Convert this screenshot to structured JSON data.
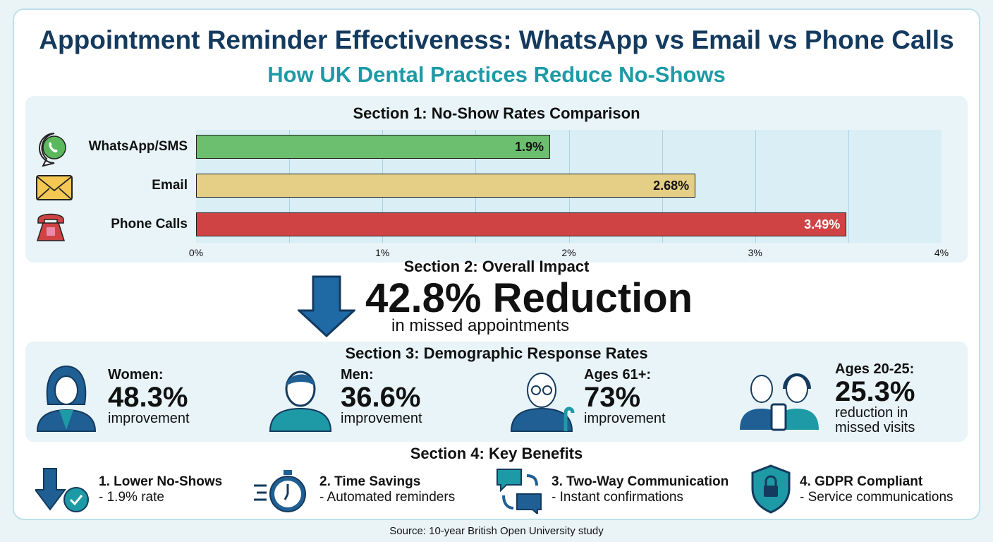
{
  "title": "Appointment Reminder Effectiveness: WhatsApp vs Email vs Phone Calls",
  "subtitle": "How UK Dental Practices Reduce No-Shows",
  "chart_data": {
    "type": "bar",
    "orientation": "horizontal",
    "title": "Section 1: No-Show Rates Comparison",
    "categories": [
      "WhatsApp/SMS",
      "Email",
      "Phone Calls"
    ],
    "values": [
      1.9,
      2.68,
      3.49
    ],
    "data_labels": [
      "1.9%",
      "2.68%",
      "3.49%"
    ],
    "colors": [
      "#6cbf6e",
      "#e5cf86",
      "#d04345"
    ],
    "icons": [
      "whatsapp-icon",
      "envelope-icon",
      "telephone-icon"
    ],
    "xlim": [
      0,
      4
    ],
    "ticks": [
      "0%",
      "1%",
      "2%",
      "3%",
      "4%"
    ],
    "grid": true
  },
  "impact": {
    "title": "Section 2: Overall Impact",
    "headline": "42.8% Reduction",
    "sub": "in missed appointments",
    "icon": "down-arrow-icon"
  },
  "demographics": {
    "title": "Section 3: Demographic Response Rates",
    "items": [
      {
        "label": "Women:",
        "value": "48.3%",
        "sub": "improvement",
        "icon": "woman-icon"
      },
      {
        "label": "Men:",
        "value": "36.6%",
        "sub": "improvement",
        "icon": "man-icon"
      },
      {
        "label": "Ages 61+:",
        "value": "73%",
        "sub": "improvement",
        "icon": "elderly-man-icon"
      },
      {
        "label": "Ages 20-25:",
        "value": "25.3%",
        "sub": "reduction in missed visits",
        "icon": "young-people-phone-icon"
      }
    ]
  },
  "benefits": {
    "title": "Section 4: Key Benefits",
    "items": [
      {
        "title": "1. Lower No-Shows",
        "sub": "- 1.9% rate",
        "icon": "down-arrow-check-icon"
      },
      {
        "title": "2. Time Savings",
        "sub": "- Automated reminders",
        "icon": "stopwatch-icon"
      },
      {
        "title": "3. Two-Way Communication",
        "sub": "- Instant confirmations",
        "icon": "chat-exchange-icon"
      },
      {
        "title": "4. GDPR Compliant",
        "sub": "- Service communications",
        "icon": "shield-lock-icon"
      }
    ]
  },
  "source": "Source: 10-year British Open University study"
}
